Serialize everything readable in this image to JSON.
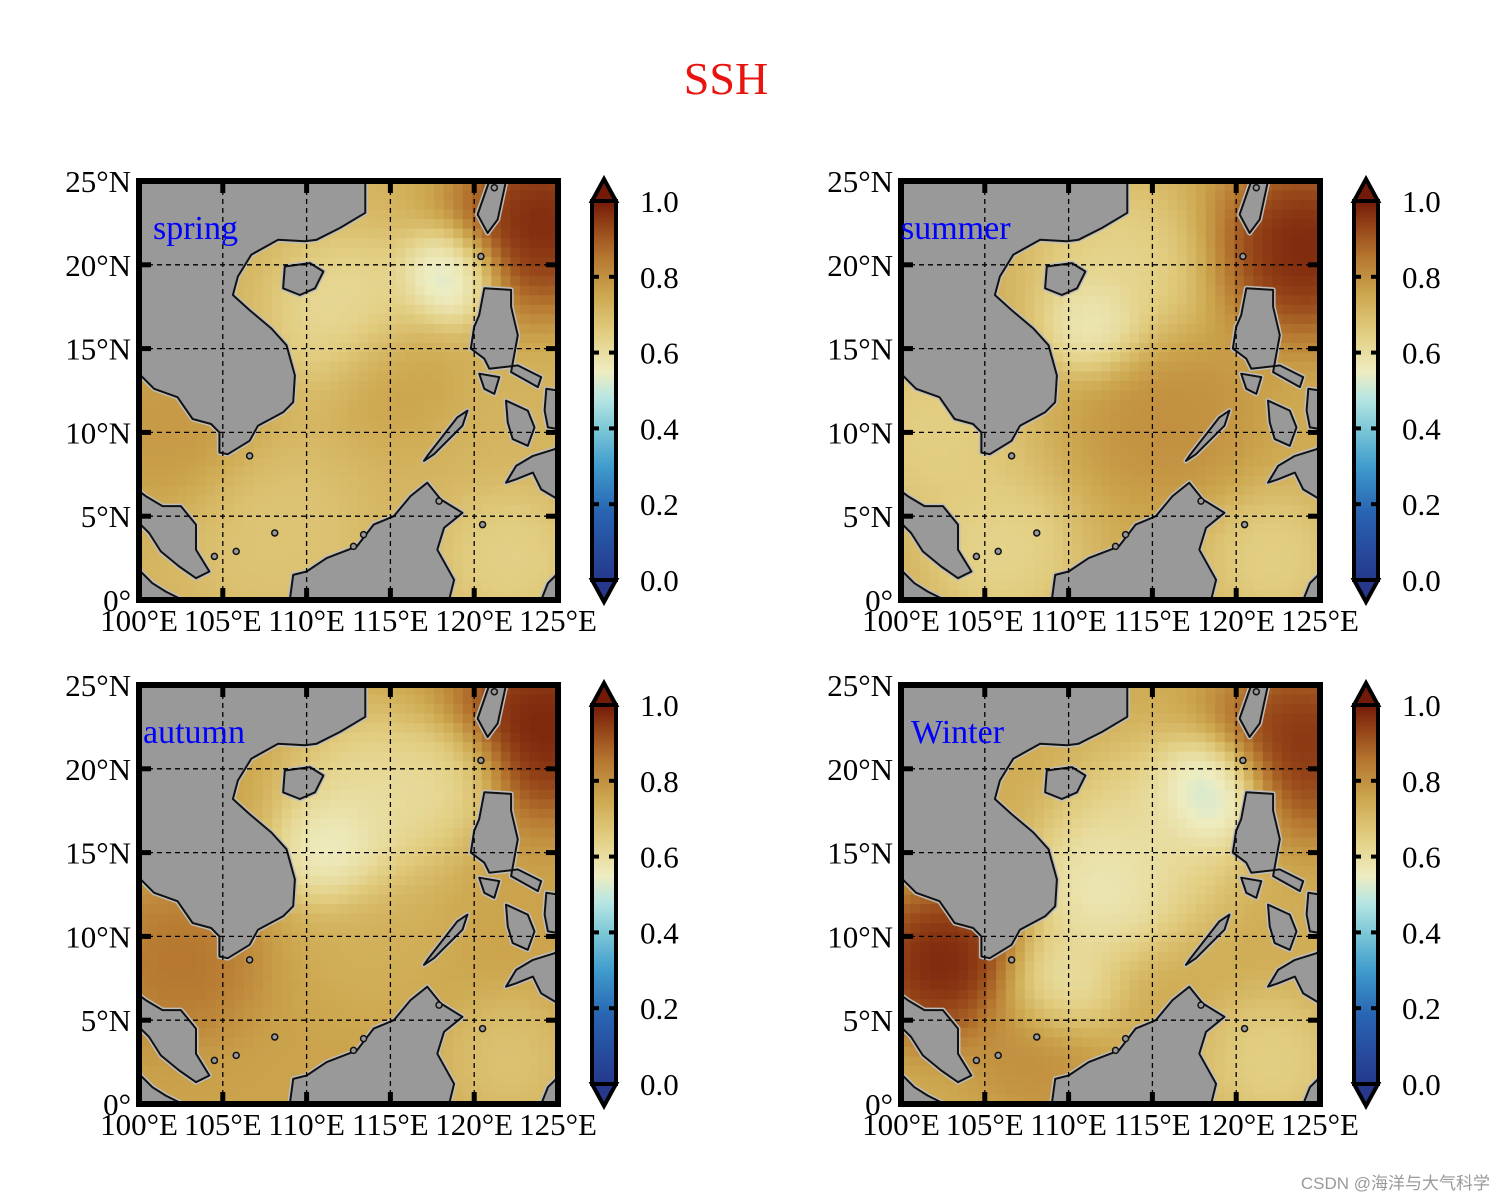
{
  "figure": {
    "title": "SSH",
    "watermark": "CSDN @海洋与大气科学",
    "colors": {
      "title": "#e8140f",
      "panel_label": "#0000ff",
      "land": "#999999",
      "frame": "#000000"
    }
  },
  "map": {
    "region": "South China Sea",
    "lon_range": [
      100,
      125
    ],
    "lat_range": [
      0,
      25
    ],
    "lon_ticks": [
      100,
      105,
      110,
      115,
      120,
      125
    ],
    "lat_ticks": [
      0,
      5,
      10,
      15,
      20,
      25
    ],
    "lon_tick_labels": [
      "100°E",
      "105°E",
      "110°E",
      "115°E",
      "120°E",
      "125°E"
    ],
    "lat_tick_labels": [
      "0°",
      "5°N",
      "10°N",
      "15°N",
      "20°N",
      "25°N"
    ],
    "gridlines": "dashed"
  },
  "colorbar": {
    "range": [
      0.0,
      1.0
    ],
    "extend": "both",
    "tick_labels": [
      "0.0",
      "0.2",
      "0.4",
      "0.6",
      "0.8",
      "1.0"
    ]
  },
  "panels": [
    {
      "label": "spring",
      "label_pos": "top-left",
      "field": {
        "base": 0.72,
        "features": [
          {
            "lon": 118.5,
            "lat": 19.3,
            "value": 0.44,
            "radius": 2.2
          },
          {
            "lon": 112.5,
            "lat": 17.0,
            "value": 0.58,
            "radius": 3.5
          },
          {
            "lon": 115.0,
            "lat": 13.5,
            "value": 0.78,
            "radius": 3.0
          },
          {
            "lon": 124.0,
            "lat": 22.5,
            "value": 1.05,
            "radius": 4.0
          },
          {
            "lon": 102.0,
            "lat": 10.5,
            "value": 0.8,
            "radius": 4.0
          },
          {
            "lon": 108.0,
            "lat": 4.0,
            "value": 0.66,
            "radius": 4.0
          },
          {
            "lon": 122.0,
            "lat": 2.5,
            "value": 0.62,
            "radius": 3.0
          }
        ]
      }
    },
    {
      "label": "summer",
      "label_pos": "top-left",
      "field": {
        "base": 0.74,
        "features": [
          {
            "lon": 111.5,
            "lat": 16.5,
            "value": 0.5,
            "radius": 2.2
          },
          {
            "lon": 113.0,
            "lat": 19.5,
            "value": 0.6,
            "radius": 4.0
          },
          {
            "lon": 102.0,
            "lat": 10.0,
            "value": 0.62,
            "radius": 4.0
          },
          {
            "lon": 106.0,
            "lat": 3.0,
            "value": 0.6,
            "radius": 3.5
          },
          {
            "lon": 116.0,
            "lat": 11.0,
            "value": 0.82,
            "radius": 4.0
          },
          {
            "lon": 124.0,
            "lat": 21.0,
            "value": 1.05,
            "radius": 4.0
          },
          {
            "lon": 122.0,
            "lat": 2.5,
            "value": 0.62,
            "radius": 3.0
          }
        ]
      }
    },
    {
      "label": "autumn",
      "label_pos": "top-left",
      "field": {
        "base": 0.76,
        "features": [
          {
            "lon": 111.5,
            "lat": 15.0,
            "value": 0.48,
            "radius": 2.5
          },
          {
            "lon": 114.0,
            "lat": 18.0,
            "value": 0.56,
            "radius": 4.0
          },
          {
            "lon": 118.5,
            "lat": 19.5,
            "value": 0.58,
            "radius": 2.5
          },
          {
            "lon": 124.0,
            "lat": 22.5,
            "value": 1.05,
            "radius": 4.0
          },
          {
            "lon": 102.5,
            "lat": 8.5,
            "value": 0.88,
            "radius": 3.5
          },
          {
            "lon": 114.0,
            "lat": 10.0,
            "value": 0.72,
            "radius": 3.5
          },
          {
            "lon": 122.0,
            "lat": 2.5,
            "value": 0.66,
            "radius": 3.0
          }
        ]
      }
    },
    {
      "label": "Winter",
      "label_pos": "top-left",
      "field": {
        "base": 0.74,
        "features": [
          {
            "lon": 118.5,
            "lat": 18.5,
            "value": 0.4,
            "radius": 2.5
          },
          {
            "lon": 112.0,
            "lat": 13.0,
            "value": 0.52,
            "radius": 3.2
          },
          {
            "lon": 109.5,
            "lat": 7.0,
            "value": 0.55,
            "radius": 2.5
          },
          {
            "lon": 115.0,
            "lat": 16.0,
            "value": 0.58,
            "radius": 4.0
          },
          {
            "lon": 102.5,
            "lat": 8.5,
            "value": 1.05,
            "radius": 3.5
          },
          {
            "lon": 124.0,
            "lat": 21.5,
            "value": 1.02,
            "radius": 4.0
          },
          {
            "lon": 108.0,
            "lat": 3.0,
            "value": 0.82,
            "radius": 3.0
          },
          {
            "lon": 122.0,
            "lat": 2.5,
            "value": 0.62,
            "radius": 3.0
          }
        ]
      }
    }
  ]
}
